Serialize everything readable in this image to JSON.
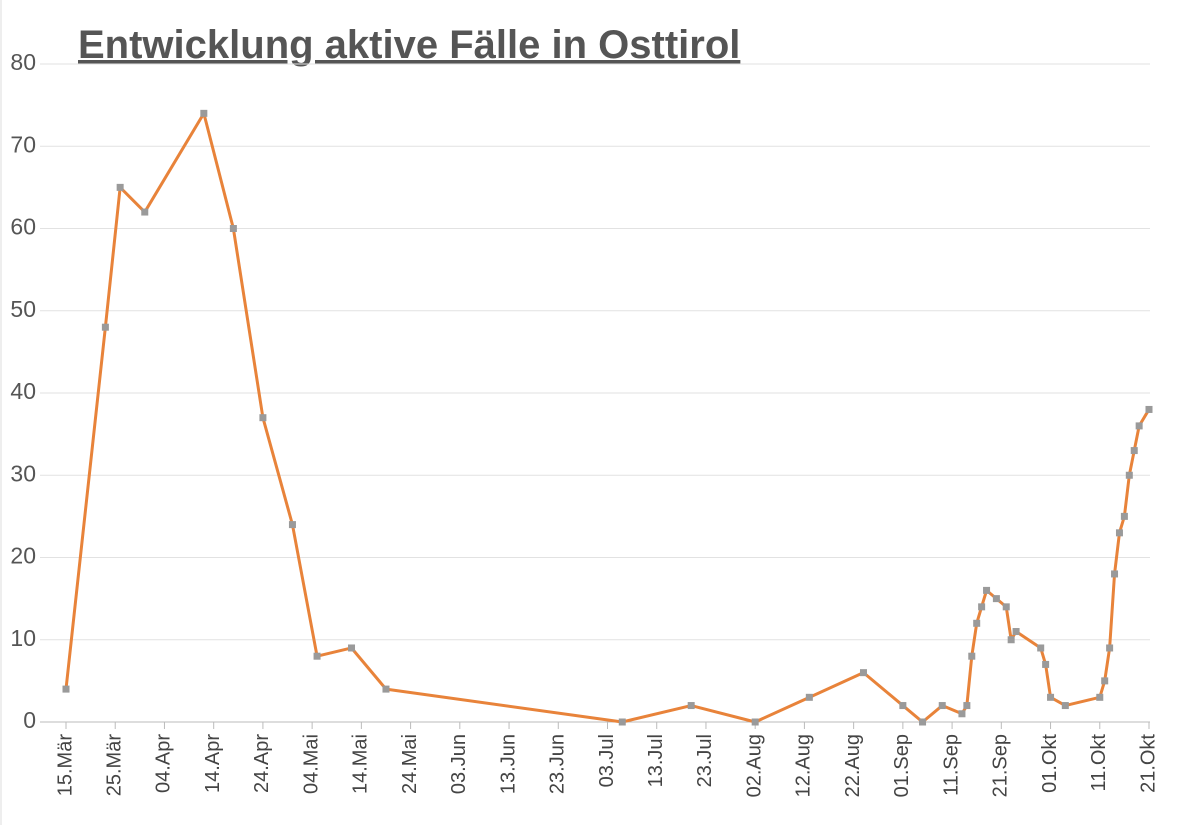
{
  "chart_data": {
    "type": "line",
    "title": "Entwicklung aktive Fälle in Osttirol",
    "x": [
      "15.Mär",
      "23.Mär",
      "26.Mär",
      "31.Mär",
      "12.Apr",
      "18.Apr",
      "24.Apr",
      "30.Apr",
      "05.Mai",
      "12.Mai",
      "19.Mai",
      "06.Jul",
      "20.Jul",
      "02.Aug",
      "13.Aug",
      "24.Aug",
      "01.Sep",
      "05.Sep",
      "09.Sep",
      "13.Sep",
      "14.Sep",
      "15.Sep",
      "16.Sep",
      "17.Sep",
      "18.Sep",
      "20.Sep",
      "22.Sep",
      "23.Sep",
      "24.Sep",
      "29.Sep",
      "30.Sep",
      "01.Okt",
      "04.Okt",
      "11.Okt",
      "12.Okt",
      "13.Okt",
      "14.Okt",
      "15.Okt",
      "16.Okt",
      "17.Okt",
      "18.Okt",
      "19.Okt",
      "21.Okt"
    ],
    "values": [
      4,
      48,
      65,
      62,
      74,
      60,
      37,
      24,
      8,
      9,
      4,
      0,
      2,
      0,
      3,
      6,
      2,
      0,
      2,
      1,
      2,
      8,
      12,
      14,
      16,
      15,
      14,
      10,
      11,
      9,
      7,
      3,
      2,
      3,
      5,
      9,
      18,
      23,
      25,
      30,
      33,
      36,
      38
    ],
    "color": "#e8833a",
    "marker_color": "#9a9a9a",
    "xlim": [
      "15.Mär",
      "21.Okt"
    ],
    "xticks": [
      "15.Mär",
      "25.Mär",
      "04.Apr",
      "14.Apr",
      "24.Apr",
      "04.Mai",
      "14.Mai",
      "24.Mai",
      "03.Jun",
      "13.Jun",
      "23.Jun",
      "03.Jul",
      "13.Jul",
      "23.Jul",
      "02.Aug",
      "12.Aug",
      "22.Aug",
      "01.Sep",
      "11.Sep",
      "21.Sep",
      "01.Okt",
      "11.Okt",
      "21.Okt"
    ],
    "ylim": [
      0,
      80
    ],
    "yticks": [
      0,
      10,
      20,
      30,
      40,
      50,
      60,
      70,
      80
    ],
    "grid": true
  }
}
